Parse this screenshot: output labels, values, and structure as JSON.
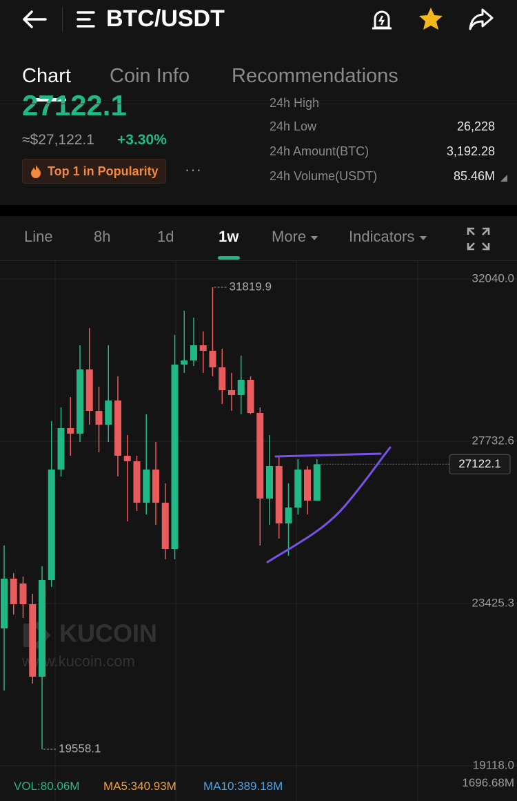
{
  "nav": {
    "title": "BTC/USDT"
  },
  "tabs": [
    "Chart",
    "Coin Info",
    "Recommendations"
  ],
  "ticker": {
    "price": "27122.1",
    "fiat": "≈$27,122.1",
    "change": "+3.30%",
    "badge": "Top 1 in Popularity",
    "more": "···"
  },
  "stats": [
    {
      "label": "24h High"
    },
    {
      "label": "24h Low",
      "value": "26,228"
    },
    {
      "label": "24h Amount(BTC)",
      "value": "3,192.28"
    },
    {
      "label": "24h Volume(USDT)",
      "value": "85.46M"
    }
  ],
  "intervals": [
    "Line",
    "8h",
    "1d",
    "1w",
    "More",
    "Indicators"
  ],
  "chart_data": {
    "type": "candlestick",
    "up_color": "#20b985",
    "down_color": "#ea5b5e",
    "grid": true,
    "ylim": [
      18824,
      32517
    ],
    "yticks": [
      {
        "value": 32040,
        "label": "32040.0"
      },
      27732.6,
      23425.3,
      {
        "value": 19118,
        "label": "19118.0"
      }
    ],
    "candles": [
      {
        "open": 22765,
        "high": 24965,
        "low": 21115,
        "close": 24085
      },
      {
        "open": 24085,
        "high": 24231,
        "low": 23132,
        "close": 23407
      },
      {
        "open": 23956,
        "high": 24140,
        "low": 23040,
        "close": 23407
      },
      {
        "open": 23407,
        "high": 23682,
        "low": 21299,
        "close": 21482
      },
      {
        "open": 21482,
        "high": 24415,
        "low": 19558.1,
        "close": 24048
      },
      {
        "open": 24048,
        "high": 28264,
        "low": 23865,
        "close": 26981
      },
      {
        "open": 26981,
        "high": 28631,
        "low": 26798,
        "close": 28081
      },
      {
        "open": 28081,
        "high": 28906,
        "low": 27348,
        "close": 27934
      },
      {
        "open": 27934,
        "high": 30280,
        "low": 27714,
        "close": 29639
      },
      {
        "open": 29639,
        "high": 30739,
        "low": 28172,
        "close": 28539
      },
      {
        "open": 28539,
        "high": 29181,
        "low": 27439,
        "close": 28172
      },
      {
        "open": 28172,
        "high": 30280,
        "low": 27714,
        "close": 28814
      },
      {
        "open": 28814,
        "high": 29455,
        "low": 26798,
        "close": 27348
      },
      {
        "open": 27348,
        "high": 27897,
        "low": 25606,
        "close": 27201
      },
      {
        "open": 27201,
        "high": 27348,
        "low": 25881,
        "close": 26101
      },
      {
        "open": 26101,
        "high": 28447,
        "low": 25789,
        "close": 26981
      },
      {
        "open": 26981,
        "high": 27714,
        "low": 25515,
        "close": 26101
      },
      {
        "open": 26101,
        "high": 26614,
        "low": 24598,
        "close": 24873
      },
      {
        "open": 24873,
        "high": 30555,
        "low": 24598,
        "close": 29767
      },
      {
        "open": 29767,
        "high": 31197,
        "low": 29547,
        "close": 29877
      },
      {
        "open": 29877,
        "high": 31014,
        "low": 29730,
        "close": 30280
      },
      {
        "open": 30280,
        "high": 30647,
        "low": 29547,
        "close": 30134
      },
      {
        "open": 30134,
        "high": 31819.9,
        "low": 29455,
        "close": 29694
      },
      {
        "open": 29694,
        "high": 30189,
        "low": 28722,
        "close": 29089
      },
      {
        "open": 29089,
        "high": 29547,
        "low": 28539,
        "close": 28961
      },
      {
        "open": 28961,
        "high": 30005,
        "low": 28447,
        "close": 29364
      },
      {
        "open": 29364,
        "high": 29455,
        "low": 28447,
        "close": 28484
      },
      {
        "open": 28484,
        "high": 28631,
        "low": 24965,
        "close": 26211
      },
      {
        "open": 26211,
        "high": 27897,
        "low": 25515,
        "close": 27073
      },
      {
        "open": 27073,
        "high": 27348,
        "low": 25148,
        "close": 25551
      },
      {
        "open": 25551,
        "high": 26614,
        "low": 24690,
        "close": 25973
      },
      {
        "open": 25973,
        "high": 27256,
        "low": 25789,
        "close": 26981
      },
      {
        "open": 26981,
        "high": 27073,
        "low": 25789,
        "close": 26156
      },
      {
        "open": 26156,
        "high": 27256,
        "low": 26156,
        "close": 27122.1
      }
    ]
  },
  "watermark": {
    "brand": "KUCOIN",
    "url": "www.kucoin.com"
  },
  "volume": {
    "vol": "VOL:80.06M",
    "ma5": "MA5:340.93M",
    "ma10": "MA10:389.18M",
    "axis_max": "1696.68M"
  }
}
